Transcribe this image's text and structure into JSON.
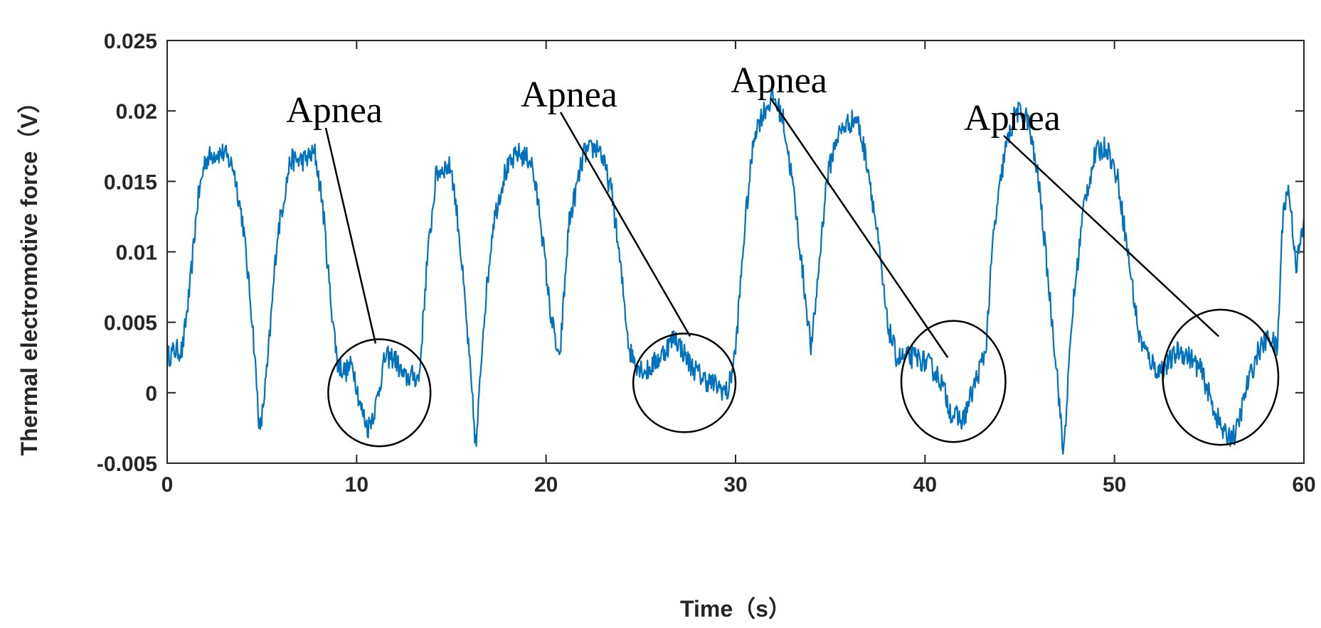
{
  "chart_data": {
    "type": "line",
    "title": "",
    "xlabel": "Time（s）",
    "ylabel": "Thermal electromotive force（V）",
    "xlim": [
      0,
      60
    ],
    "ylim": [
      -0.005,
      0.025
    ],
    "xticks": [
      0,
      10,
      20,
      30,
      40,
      50,
      60
    ],
    "xtick_labels": [
      "0",
      "10",
      "20",
      "30",
      "40",
      "50",
      "60"
    ],
    "yticks": [
      -0.005,
      0,
      0.005,
      0.01,
      0.015,
      0.02,
      0.025
    ],
    "ytick_labels": [
      "-0.005",
      "0",
      "0.005",
      "0.01",
      "0.015",
      "0.02",
      "0.025"
    ],
    "grid": false,
    "series": [
      {
        "name": "Thermal electromotive force",
        "color": "#0072BD",
        "x": [
          0,
          0.4,
          0.8,
          1.2,
          1.6,
          2.0,
          2.5,
          3.0,
          3.5,
          4.0,
          4.5,
          4.9,
          5.3,
          5.8,
          6.5,
          7.2,
          7.8,
          8.2,
          8.6,
          9.0,
          9.4,
          9.8,
          10.2,
          10.6,
          11.0,
          11.5,
          12.0,
          12.5,
          13.0,
          13.3,
          13.7,
          14.2,
          14.6,
          15.0,
          15.4,
          15.8,
          16.3,
          16.7,
          17.2,
          17.8,
          18.5,
          19.2,
          19.7,
          20.2,
          20.7,
          21.2,
          22.0,
          22.8,
          23.5,
          24.0,
          24.4,
          24.8,
          25.3,
          26.0,
          26.8,
          27.6,
          28.3,
          29.0,
          29.6,
          30.0,
          30.5,
          31.0,
          31.5,
          32.0,
          32.5,
          33.0,
          33.5,
          34.0,
          34.4,
          34.8,
          35.3,
          35.8,
          36.4,
          37.0,
          37.5,
          38.0,
          38.5,
          39.0,
          39.6,
          40.2,
          40.8,
          41.4,
          42.0,
          42.6,
          43.2,
          43.6,
          44.2,
          44.8,
          45.4,
          46.0,
          46.5,
          47.0,
          47.3,
          47.8,
          48.4,
          49.0,
          49.6,
          50.2,
          50.8,
          51.3,
          51.8,
          52.3,
          52.8,
          53.4,
          54.0,
          54.6,
          55.2,
          55.8,
          56.4,
          57.0,
          57.6,
          58.2,
          58.6,
          58.9,
          59.2,
          59.6,
          60.0
        ],
        "y": [
          0.0025,
          0.003,
          0.003,
          0.0075,
          0.0135,
          0.0165,
          0.017,
          0.017,
          0.016,
          0.012,
          0.005,
          -0.003,
          0.002,
          0.011,
          0.0165,
          0.0165,
          0.017,
          0.0135,
          0.007,
          0.002,
          0.0015,
          0.002,
          -0.001,
          -0.0025,
          -0.001,
          0.0025,
          0.0025,
          0.001,
          0.0012,
          0.001,
          0.009,
          0.0155,
          0.016,
          0.016,
          0.0115,
          0.005,
          -0.004,
          0.005,
          0.012,
          0.0155,
          0.017,
          0.0165,
          0.0125,
          0.006,
          0.002,
          0.012,
          0.017,
          0.0175,
          0.014,
          0.008,
          0.003,
          0.002,
          0.0015,
          0.0025,
          0.004,
          0.002,
          0.001,
          0.0005,
          0,
          0.003,
          0.012,
          0.0185,
          0.02,
          0.021,
          0.0195,
          0.015,
          0.009,
          0.003,
          0.009,
          0.015,
          0.018,
          0.019,
          0.0195,
          0.016,
          0.011,
          0.005,
          0.0025,
          0.0025,
          0.0025,
          0.002,
          0.001,
          -0.0015,
          -0.002,
          0.0005,
          0.003,
          0.011,
          0.017,
          0.02,
          0.0195,
          0.015,
          0.008,
          0.001,
          -0.0045,
          0.006,
          0.0135,
          0.017,
          0.0175,
          0.015,
          0.009,
          0.004,
          0.0025,
          0.0015,
          0.002,
          0.003,
          0.0025,
          0.0015,
          -0.001,
          -0.003,
          -0.003,
          0.0005,
          0.003,
          0.004,
          0.003,
          0.013,
          0.0145,
          0.009,
          0.012
        ]
      }
    ],
    "annotations": [
      {
        "text": "Apnea",
        "x": 11,
        "y": 0.0035
      },
      {
        "text": "Apnea",
        "x": 27.6,
        "y": 0.004
      },
      {
        "text": "Apnea",
        "x": 41.2,
        "y": 0.0025
      },
      {
        "text": "Apnea",
        "x": 55.5,
        "y": 0.004
      }
    ],
    "circles": [
      {
        "x": 11.2,
        "y": 0,
        "rx": 2.7,
        "ry": 0.0038
      },
      {
        "x": 27.3,
        "y": 0.0007,
        "rx": 2.7,
        "ry": 0.0035
      },
      {
        "x": 41.5,
        "y": 0.0008,
        "rx": 2.75,
        "ry": 0.0043
      },
      {
        "x": 55.6,
        "y": 0.0011,
        "rx": 3.05,
        "ry": 0.0048
      }
    ]
  }
}
